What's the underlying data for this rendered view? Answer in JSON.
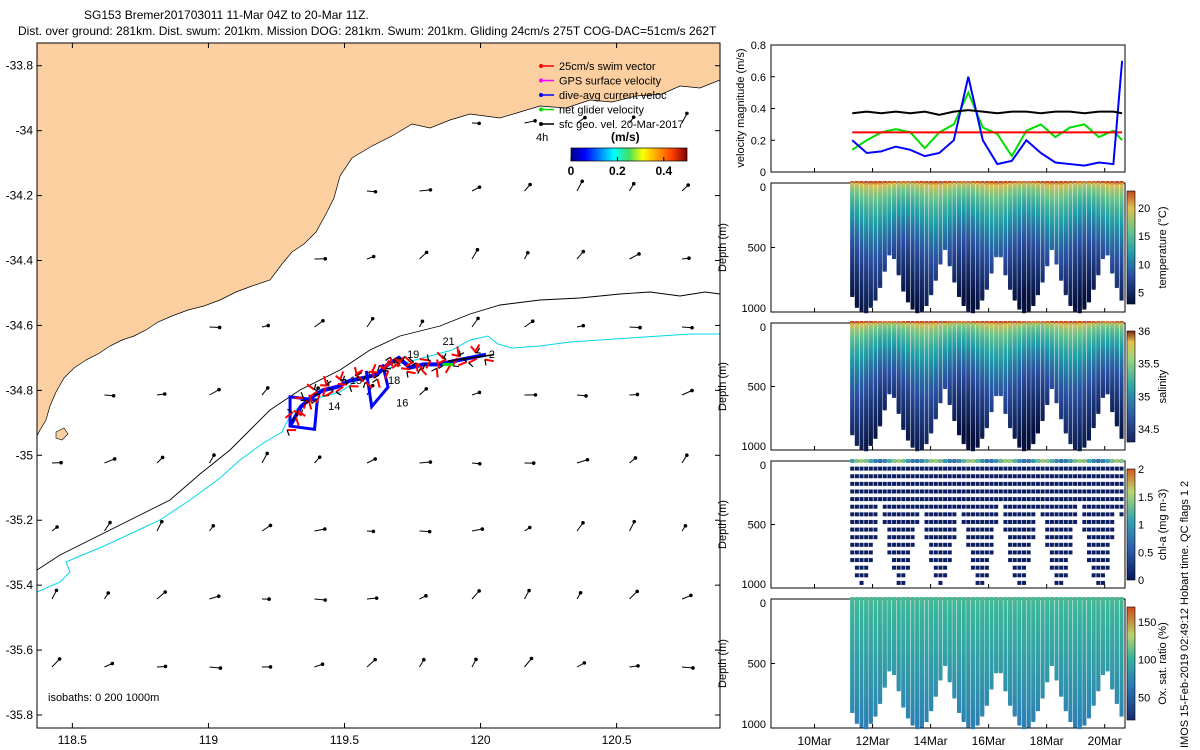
{
  "header": {
    "line1": "SG153 Bremer201703011 11-Mar 04Z to 20-Mar 11Z.",
    "line2": "Dist. over ground: 281km. Dist. swum: 201km. Mission DOG: 281km. Swum: 201km. Gliding 24cm/s 275T COG-DAC=51cm/s 262T"
  },
  "map": {
    "xticks": [
      "118.5",
      "119",
      "119.5",
      "120",
      "120.5"
    ],
    "xtick_values": [
      118.5,
      119,
      119.5,
      120,
      120.5
    ],
    "yticks": [
      "-33.8",
      "-34",
      "-34.2",
      "-34.4",
      "-34.6",
      "-34.8",
      "-35",
      "-35.2",
      "-35.4",
      "-35.6",
      "-35.8"
    ],
    "ytick_values": [
      -33.8,
      -34,
      -34.2,
      -34.4,
      -34.6,
      -34.8,
      -35,
      -35.2,
      -35.4,
      -35.6,
      -35.8
    ],
    "xlim": [
      118.37,
      120.88
    ],
    "ylim": [
      -35.84,
      -33.73
    ],
    "legend": [
      {
        "label": "25cm/s swim vector",
        "color": "#ff0000"
      },
      {
        "label": "GPS surface velocity",
        "color": "#ff00ff"
      },
      {
        "label": "dive-avg current veloc",
        "color": "#0000ff"
      },
      {
        "label": "net glider velocity",
        "color": "#00dd00"
      },
      {
        "label": "sfc geo. vel. 20-Mar-2017",
        "color": "#000000"
      }
    ],
    "legend_extra": "4h",
    "colorbar": {
      "title": "(m/s)",
      "ticks": [
        "0",
        "0.2",
        "0.4"
      ],
      "tick_values": [
        0,
        0.2,
        0.4
      ],
      "range": [
        0,
        0.5
      ]
    },
    "dive_labels": [
      {
        "text": "21",
        "lon": 119.86,
        "lat": -34.66
      },
      {
        "text": "19",
        "lon": 119.73,
        "lat": -34.7
      },
      {
        "text": "2",
        "lon": 120.03,
        "lat": -34.7
      },
      {
        "text": "15",
        "lon": 119.52,
        "lat": -34.78
      },
      {
        "text": "18",
        "lon": 119.66,
        "lat": -34.78
      },
      {
        "text": "16",
        "lon": 119.69,
        "lat": -34.85
      },
      {
        "text": "14",
        "lon": 119.44,
        "lat": -34.86
      }
    ],
    "isobaths": "isobaths: 0   200  1000m"
  },
  "panels": {
    "velocity": {
      "ylabel": "velocity magnitude (m/s)",
      "yticks": [
        "0",
        "0.2",
        "0.4",
        "0.6",
        "0.8"
      ],
      "ylim": [
        0,
        0.8
      ],
      "series": [
        {
          "name": "net glider velocity",
          "color": "#00dd00"
        },
        {
          "name": "swim",
          "color": "#ff0000"
        },
        {
          "name": "dive-avg current",
          "color": "#0000ff"
        },
        {
          "name": "sfc geo",
          "color": "#000000"
        }
      ]
    },
    "temperature": {
      "ylabel": "Depth (m)",
      "clabel": "temperature (°C)",
      "yticks": [
        "0",
        "500",
        "1000"
      ],
      "cticks": [
        "5",
        "10",
        "15",
        "20"
      ],
      "crange": [
        3,
        23
      ]
    },
    "salinity": {
      "ylabel": "Depth (m)",
      "clabel": "salinity",
      "yticks": [
        "0",
        "500",
        "1000"
      ],
      "cticks": [
        "34.5",
        "35",
        "35.5",
        "36"
      ],
      "crange": [
        34.3,
        36
      ]
    },
    "chla": {
      "ylabel": "Depth (m)",
      "clabel": "chl-a (mg m-3)",
      "yticks": [
        "0",
        "500",
        "1000"
      ],
      "cticks": [
        "0",
        "0.5",
        "1",
        "1.5",
        "2"
      ],
      "crange": [
        0,
        2
      ]
    },
    "oxsat": {
      "ylabel": "Depth (m)",
      "clabel": "Ox. sat. ratio (%)",
      "yticks": [
        "0",
        "500",
        "1000"
      ],
      "cticks": [
        "50",
        "100",
        "150"
      ],
      "crange": [
        20,
        170
      ]
    },
    "xticks": [
      "10Mar",
      "12Mar",
      "14Mar",
      "16Mar",
      "18Mar",
      "20Mar"
    ],
    "xtick_values": [
      10,
      12,
      14,
      16,
      18,
      20
    ],
    "xlim": [
      8.5,
      20.7
    ]
  },
  "side_note": "© IMOS 15-Feb-2019 02:49:12 Hobart time. QC flags 1  2",
  "chart_data": {
    "type": "scatter",
    "title": "SG153 Bremer201703011 11-Mar 04Z to 20-Mar 11Z.",
    "track": {
      "lon": [
        119.3,
        119.34,
        119.38,
        119.42,
        119.47,
        119.52,
        119.58,
        119.62,
        119.66,
        119.7,
        119.74,
        119.79,
        119.85,
        119.9,
        119.96,
        120.02
      ],
      "lat": [
        -34.91,
        -34.85,
        -34.82,
        -34.8,
        -34.79,
        -34.77,
        -34.76,
        -34.75,
        -34.72,
        -34.7,
        -34.73,
        -34.72,
        -34.72,
        -34.71,
        -34.7,
        -34.69
      ]
    },
    "velocity_panel": {
      "days": [
        11.3,
        11.8,
        12.3,
        12.8,
        13.3,
        13.8,
        14.3,
        14.8,
        15.3,
        15.8,
        16.3,
        16.8,
        17.3,
        17.8,
        18.3,
        18.8,
        19.3,
        19.8,
        20.3,
        20.6
      ],
      "sfc_geo": [
        0.37,
        0.38,
        0.37,
        0.38,
        0.37,
        0.38,
        0.36,
        0.38,
        0.39,
        0.38,
        0.37,
        0.38,
        0.38,
        0.37,
        0.38,
        0.38,
        0.37,
        0.38,
        0.38,
        0.37
      ],
      "swim": [
        0.25,
        0.25,
        0.25,
        0.25,
        0.25,
        0.25,
        0.25,
        0.25,
        0.25,
        0.25,
        0.25,
        0.25,
        0.25,
        0.25,
        0.25,
        0.25,
        0.25,
        0.25,
        0.25,
        0.25
      ],
      "current": [
        0.2,
        0.12,
        0.13,
        0.16,
        0.14,
        0.1,
        0.12,
        0.2,
        0.6,
        0.2,
        0.05,
        0.07,
        0.2,
        0.12,
        0.06,
        0.05,
        0.04,
        0.06,
        0.05,
        0.7
      ],
      "net": [
        0.14,
        0.2,
        0.25,
        0.27,
        0.25,
        0.15,
        0.25,
        0.3,
        0.5,
        0.28,
        0.24,
        0.1,
        0.26,
        0.3,
        0.22,
        0.28,
        0.3,
        0.22,
        0.26,
        0.2
      ]
    }
  }
}
